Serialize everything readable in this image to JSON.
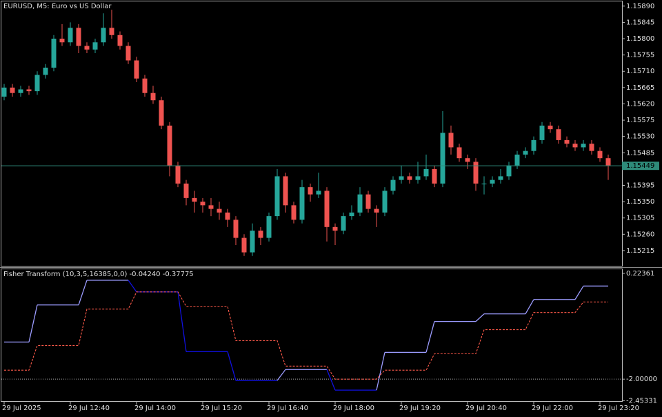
{
  "chart_data": [
    {
      "type": "candlestick",
      "title": "EURUSD, M5:  Euro vs US Dollar",
      "up_color": "#26a69a",
      "down_color": "#ef5350",
      "candles": [
        [
          1.1564,
          1.15675,
          1.1563,
          1.15665
        ],
        [
          1.15665,
          1.15675,
          1.1564,
          1.1565
        ],
        [
          1.1565,
          1.1567,
          1.1564,
          1.1566
        ],
        [
          1.1566,
          1.1567,
          1.15645,
          1.15655
        ],
        [
          1.15655,
          1.1571,
          1.15645,
          1.157
        ],
        [
          1.157,
          1.1573,
          1.1569,
          1.1572
        ],
        [
          1.1572,
          1.1581,
          1.1571,
          1.158
        ],
        [
          1.158,
          1.1584,
          1.1578,
          1.1579
        ],
        [
          1.1579,
          1.15845,
          1.1578,
          1.1583
        ],
        [
          1.1583,
          1.1584,
          1.1576,
          1.1578
        ],
        [
          1.1578,
          1.1579,
          1.1576,
          1.1577
        ],
        [
          1.1577,
          1.158,
          1.1576,
          1.1579
        ],
        [
          1.1579,
          1.1587,
          1.1578,
          1.1583
        ],
        [
          1.1583,
          1.1588,
          1.158,
          1.1581
        ],
        [
          1.1581,
          1.1582,
          1.1577,
          1.1578
        ],
        [
          1.1578,
          1.1579,
          1.1573,
          1.1574
        ],
        [
          1.1574,
          1.1575,
          1.1568,
          1.1569
        ],
        [
          1.1569,
          1.157,
          1.1564,
          1.1565
        ],
        [
          1.1565,
          1.1567,
          1.1562,
          1.1563
        ],
        [
          1.1563,
          1.1564,
          1.1555,
          1.1556
        ],
        [
          1.1556,
          1.1557,
          1.1542,
          1.1545
        ],
        [
          1.1545,
          1.1546,
          1.1539,
          1.154
        ],
        [
          1.154,
          1.1541,
          1.1534,
          1.1536
        ],
        [
          1.1536,
          1.1538,
          1.1532,
          1.1535
        ],
        [
          1.1535,
          1.1536,
          1.1532,
          1.1534
        ],
        [
          1.1534,
          1.1536,
          1.1531,
          1.1533
        ],
        [
          1.1533,
          1.1535,
          1.153,
          1.1532
        ],
        [
          1.1532,
          1.1533,
          1.1528,
          1.153
        ],
        [
          1.153,
          1.1531,
          1.1523,
          1.1525
        ],
        [
          1.1525,
          1.1526,
          1.152,
          1.1521
        ],
        [
          1.1521,
          1.1529,
          1.152,
          1.1527
        ],
        [
          1.1527,
          1.1528,
          1.1523,
          1.1525
        ],
        [
          1.1525,
          1.1532,
          1.1524,
          1.1531
        ],
        [
          1.1531,
          1.1544,
          1.153,
          1.1542
        ],
        [
          1.1542,
          1.1543,
          1.1532,
          1.1534
        ],
        [
          1.1534,
          1.1535,
          1.1529,
          1.153
        ],
        [
          1.153,
          1.1541,
          1.1529,
          1.1539
        ],
        [
          1.1539,
          1.154,
          1.1535,
          1.1537
        ],
        [
          1.1537,
          1.1543,
          1.1536,
          1.1538
        ],
        [
          1.1538,
          1.1539,
          1.1524,
          1.1528
        ],
        [
          1.1528,
          1.1529,
          1.1523,
          1.1527
        ],
        [
          1.1527,
          1.1532,
          1.1526,
          1.1531
        ],
        [
          1.1531,
          1.1534,
          1.153,
          1.1532
        ],
        [
          1.1532,
          1.1539,
          1.1531,
          1.1537
        ],
        [
          1.1537,
          1.1538,
          1.1532,
          1.1533
        ],
        [
          1.1533,
          1.1534,
          1.1528,
          1.1532
        ],
        [
          1.1532,
          1.1539,
          1.1531,
          1.1538
        ],
        [
          1.1538,
          1.1542,
          1.1537,
          1.1541
        ],
        [
          1.1541,
          1.1545,
          1.154,
          1.1542
        ],
        [
          1.1542,
          1.1543,
          1.154,
          1.1541
        ],
        [
          1.1541,
          1.1546,
          1.154,
          1.1542
        ],
        [
          1.1542,
          1.1548,
          1.1541,
          1.1544
        ],
        [
          1.1544,
          1.1545,
          1.1539,
          1.154
        ],
        [
          1.154,
          1.156,
          1.1539,
          1.1554
        ],
        [
          1.1554,
          1.1556,
          1.1548,
          1.155
        ],
        [
          1.155,
          1.1551,
          1.1546,
          1.1547
        ],
        [
          1.1547,
          1.1548,
          1.1544,
          1.1546
        ],
        [
          1.1546,
          1.1547,
          1.1538,
          1.154
        ],
        [
          1.154,
          1.1542,
          1.1537,
          1.154
        ],
        [
          1.154,
          1.1542,
          1.1539,
          1.1541
        ],
        [
          1.1541,
          1.1544,
          1.154,
          1.1542
        ],
        [
          1.1542,
          1.1546,
          1.1541,
          1.1545
        ],
        [
          1.1545,
          1.1549,
          1.1544,
          1.1548
        ],
        [
          1.1548,
          1.155,
          1.1547,
          1.1549
        ],
        [
          1.1549,
          1.1553,
          1.1548,
          1.1552
        ],
        [
          1.1552,
          1.1557,
          1.1551,
          1.1556
        ],
        [
          1.1556,
          1.1557,
          1.1554,
          1.1555
        ],
        [
          1.1555,
          1.1556,
          1.1551,
          1.1552
        ],
        [
          1.1552,
          1.1553,
          1.155,
          1.1551
        ],
        [
          1.1551,
          1.1552,
          1.1549,
          1.155
        ],
        [
          1.155,
          1.1552,
          1.1549,
          1.1551
        ],
        [
          1.1551,
          1.1552,
          1.1548,
          1.1549
        ],
        [
          1.1549,
          1.155,
          1.1546,
          1.1547
        ],
        [
          1.1547,
          1.1548,
          1.1541,
          1.1545
        ]
      ],
      "ylim": [
        1.15171,
        1.15903
      ],
      "yticks": [
        {
          "value": 1.1589,
          "label": "1.15890"
        },
        {
          "value": 1.15845,
          "label": "1.15845"
        },
        {
          "value": 1.158,
          "label": "1.15800"
        },
        {
          "value": 1.15755,
          "label": "1.15755"
        },
        {
          "value": 1.1571,
          "label": "1.15710"
        },
        {
          "value": 1.15665,
          "label": "1.15665"
        },
        {
          "value": 1.1562,
          "label": "1.15620"
        },
        {
          "value": 1.15575,
          "label": "1.15575"
        },
        {
          "value": 1.1553,
          "label": "1.15530"
        },
        {
          "value": 1.15485,
          "label": "1.15485"
        },
        {
          "value": 1.15395,
          "label": "1.15395"
        },
        {
          "value": 1.1535,
          "label": "1.15350"
        },
        {
          "value": 1.15305,
          "label": "1.15305"
        },
        {
          "value": 1.1526,
          "label": "1.15260"
        },
        {
          "value": 1.15215,
          "label": "1.15215"
        }
      ],
      "current_price": {
        "value": 1.15449,
        "label": "1.15449"
      },
      "current_color": "#2e8b7a"
    },
    {
      "type": "line",
      "title": "Fisher Transform (10,3,5,16385,0,0) -0.04240 -0.37775",
      "categories": [
        "29 Jul 2025",
        null,
        null,
        null,
        null,
        null,
        null,
        null,
        "29 Jul 12:40",
        null,
        null,
        null,
        null,
        null,
        null,
        null,
        "29 Jul 14:00",
        null,
        null,
        null,
        null,
        null,
        null,
        null,
        "29 Jul 15:20",
        null,
        null,
        null,
        null,
        null,
        null,
        null,
        "29 Jul 16:40",
        null,
        null,
        null,
        null,
        null,
        null,
        null,
        "29 Jul 18:00",
        null,
        null,
        null,
        null,
        null,
        null,
        null,
        "29 Jul 19:20",
        null,
        null,
        null,
        null,
        null,
        null,
        null,
        "29 Jul 20:40",
        null,
        null,
        null,
        null,
        null,
        null,
        null,
        "29 Jul 22:00",
        null,
        null,
        null,
        null,
        null,
        null,
        null,
        "29 Jul 23:20",
        null
      ],
      "series": [
        {
          "color": "#9c9cff",
          "down_color": "#1010e0",
          "values": [
            -1.22,
            -1.22,
            -1.22,
            -1.22,
            -0.44,
            -0.44,
            -0.44,
            -0.44,
            -0.44,
            -0.44,
            0.079,
            0.079,
            0.079,
            0.079,
            0.079,
            0.079,
            -0.166,
            -0.166,
            -0.166,
            -0.166,
            -0.166,
            -0.166,
            -1.422,
            -1.422,
            -1.422,
            -1.422,
            -1.422,
            -1.422,
            -2.029,
            -2.029,
            -2.029,
            -2.029,
            -2.029,
            -2.029,
            -1.798,
            -1.798,
            -1.798,
            -1.798,
            -1.798,
            -1.798,
            -2.231,
            -2.231,
            -2.231,
            -2.231,
            -2.231,
            -2.231,
            -1.437,
            -1.437,
            -1.437,
            -1.437,
            -1.437,
            -1.437,
            -0.787,
            -0.787,
            -0.787,
            -0.787,
            -0.787,
            -0.787,
            -0.628,
            -0.628,
            -0.628,
            -0.628,
            -0.628,
            -0.628,
            -0.325,
            -0.325,
            -0.325,
            -0.325,
            -0.325,
            -0.325,
            -0.0424,
            -0.0424,
            -0.0424,
            -0.0424
          ]
        },
        {
          "color": "#ff5a4a",
          "dashed": true,
          "values": [
            -1.812,
            -1.812,
            -1.812,
            -1.812,
            -1.293,
            -1.293,
            -1.293,
            -1.293,
            -1.293,
            -1.293,
            -0.527,
            -0.527,
            -0.527,
            -0.527,
            -0.527,
            -0.527,
            -0.166,
            -0.166,
            -0.166,
            -0.166,
            -0.166,
            -0.166,
            -0.47,
            -0.47,
            -0.47,
            -0.47,
            -0.47,
            -0.47,
            -1.191,
            -1.191,
            -1.191,
            -1.191,
            -1.191,
            -1.191,
            -1.726,
            -1.726,
            -1.726,
            -1.726,
            -1.726,
            -1.726,
            -2.0,
            -2.0,
            -2.0,
            -2.0,
            -2.0,
            -2.0,
            -1.812,
            -1.812,
            -1.812,
            -1.812,
            -1.812,
            -1.812,
            -1.466,
            -1.466,
            -1.466,
            -1.466,
            -1.466,
            -1.466,
            -0.96,
            -0.96,
            -0.96,
            -0.96,
            -0.96,
            -0.96,
            -0.6,
            -0.6,
            -0.6,
            -0.6,
            -0.6,
            -0.6,
            -0.37775,
            -0.37775,
            -0.37775,
            -0.37775
          ]
        }
      ],
      "ylim": [
        -2.4765,
        0.3103
      ],
      "yticks": [
        {
          "value": 0.22361,
          "label": "0.22361"
        },
        {
          "value": -2.0,
          "label": "-2.00000"
        },
        {
          "value": -2.45331,
          "label": "-2.45331"
        }
      ],
      "level_lines": [
        -2.0
      ]
    }
  ]
}
